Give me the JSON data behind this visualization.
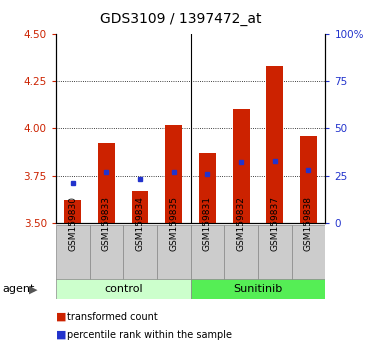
{
  "title": "GDS3109 / 1397472_at",
  "samples": [
    "GSM159830",
    "GSM159833",
    "GSM159834",
    "GSM159835",
    "GSM159831",
    "GSM159832",
    "GSM159837",
    "GSM159838"
  ],
  "transformed_count": [
    3.62,
    3.92,
    3.67,
    4.02,
    3.87,
    4.1,
    4.33,
    3.96
  ],
  "percentile_rank": [
    3.71,
    3.77,
    3.73,
    3.77,
    3.76,
    3.82,
    3.83,
    3.78
  ],
  "bar_bottom": 3.5,
  "ylim_left": [
    3.5,
    4.5
  ],
  "ylim_right": [
    0,
    100
  ],
  "yticks_left": [
    3.5,
    3.75,
    4.0,
    4.25,
    4.5
  ],
  "yticks_right": [
    0,
    25,
    50,
    75,
    100
  ],
  "grid_values": [
    3.75,
    4.0,
    4.25
  ],
  "bar_color": "#cc2200",
  "dot_color": "#2233cc",
  "control_color": "#ccffcc",
  "sunitinib_color": "#55ee55",
  "tick_bg_color": "#cccccc",
  "legend_red": "transformed count",
  "legend_blue": "percentile rank within the sample",
  "title_fontsize": 10,
  "red_color": "#cc2200",
  "blue_color": "#2233cc",
  "bar_width": 0.5,
  "n_control": 4,
  "n_total": 8
}
